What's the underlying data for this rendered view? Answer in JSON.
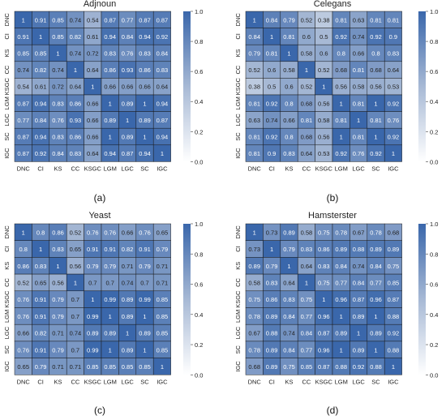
{
  "figure": {
    "colorbar_ticks": [
      "0.0",
      "0.2",
      "0.4",
      "0.6",
      "0.8",
      "1.0"
    ]
  },
  "chart_data": [
    {
      "type": "heatmap",
      "title": "Adjnoun",
      "caption": "(a)",
      "row_labels": [
        "DNC",
        "CI",
        "KS",
        "CC",
        "KSGC",
        "LGM",
        "LGC",
        "SC",
        "IGC"
      ],
      "col_labels": [
        "DNC",
        "CI",
        "KS",
        "CC",
        "KSGC",
        "LGM",
        "LGC",
        "SC",
        "IGC"
      ],
      "values": [
        [
          1,
          0.91,
          0.85,
          0.74,
          0.54,
          0.87,
          0.77,
          0.87,
          0.87
        ],
        [
          0.91,
          1,
          0.85,
          0.82,
          0.61,
          0.94,
          0.84,
          0.94,
          0.92
        ],
        [
          0.85,
          0.85,
          1,
          0.74,
          0.72,
          0.83,
          0.76,
          0.83,
          0.84
        ],
        [
          0.74,
          0.82,
          0.74,
          1,
          0.64,
          0.86,
          0.93,
          0.86,
          0.83
        ],
        [
          0.54,
          0.61,
          0.72,
          0.64,
          1,
          0.66,
          0.66,
          0.66,
          0.64
        ],
        [
          0.87,
          0.94,
          0.83,
          0.86,
          0.66,
          1,
          0.89,
          1,
          0.94
        ],
        [
          0.77,
          0.84,
          0.76,
          0.93,
          0.66,
          0.89,
          1,
          0.89,
          0.87
        ],
        [
          0.87,
          0.94,
          0.83,
          0.86,
          0.66,
          1,
          0.89,
          1,
          0.94
        ],
        [
          0.87,
          0.92,
          0.84,
          0.83,
          0.64,
          0.94,
          0.87,
          0.94,
          1
        ]
      ],
      "vmin": 0,
      "vmax": 1,
      "colorbar_ticks": [
        0,
        0.2,
        0.4,
        0.6,
        0.8,
        1.0
      ]
    },
    {
      "type": "heatmap",
      "title": "Celegans",
      "caption": "(b)",
      "row_labels": [
        "DNC",
        "CI",
        "KS",
        "CC",
        "KSGC",
        "LGM",
        "LGC",
        "SC",
        "IGC"
      ],
      "col_labels": [
        "DNC",
        "CI",
        "KS",
        "CC",
        "KSGC",
        "LGM",
        "LGC",
        "SC",
        "IGC"
      ],
      "values": [
        [
          1,
          0.84,
          0.79,
          0.52,
          0.38,
          0.81,
          0.63,
          0.81,
          0.81
        ],
        [
          0.84,
          1,
          0.81,
          0.6,
          0.5,
          0.92,
          0.74,
          0.92,
          0.9
        ],
        [
          0.79,
          0.81,
          1,
          0.58,
          0.6,
          0.8,
          0.66,
          0.8,
          0.83
        ],
        [
          0.52,
          0.6,
          0.58,
          1,
          0.52,
          0.68,
          0.81,
          0.68,
          0.64
        ],
        [
          0.38,
          0.5,
          0.6,
          0.52,
          1,
          0.56,
          0.58,
          0.56,
          0.53
        ],
        [
          0.81,
          0.92,
          0.8,
          0.68,
          0.56,
          1,
          0.81,
          1,
          0.92
        ],
        [
          0.63,
          0.74,
          0.66,
          0.81,
          0.58,
          0.81,
          1,
          0.81,
          0.76
        ],
        [
          0.81,
          0.92,
          0.8,
          0.68,
          0.56,
          1,
          0.81,
          1,
          0.92
        ],
        [
          0.81,
          0.9,
          0.83,
          0.64,
          0.53,
          0.92,
          0.76,
          0.92,
          1
        ]
      ],
      "vmin": 0,
      "vmax": 1,
      "colorbar_ticks": [
        0,
        0.2,
        0.4,
        0.6,
        0.8,
        1.0
      ]
    },
    {
      "type": "heatmap",
      "title": "Yeast",
      "caption": "(c)",
      "row_labels": [
        "DNC",
        "CI",
        "KS",
        "CC",
        "KSGC",
        "LGM",
        "LGC",
        "SC",
        "IGC"
      ],
      "col_labels": [
        "DNC",
        "CI",
        "KS",
        "CC",
        "KSGC",
        "LGM",
        "LGC",
        "SC",
        "IGC"
      ],
      "values": [
        [
          1,
          0.8,
          0.86,
          0.52,
          0.76,
          0.76,
          0.66,
          0.76,
          0.65
        ],
        [
          0.8,
          1,
          0.83,
          0.65,
          0.91,
          0.91,
          0.82,
          0.91,
          0.79
        ],
        [
          0.86,
          0.83,
          1,
          0.56,
          0.79,
          0.79,
          0.71,
          0.79,
          0.71
        ],
        [
          0.52,
          0.65,
          0.56,
          1,
          0.7,
          0.7,
          0.74,
          0.7,
          0.71
        ],
        [
          0.76,
          0.91,
          0.79,
          0.7,
          1,
          0.99,
          0.89,
          0.99,
          0.85
        ],
        [
          0.76,
          0.91,
          0.79,
          0.7,
          0.99,
          1,
          0.89,
          1,
          0.85
        ],
        [
          0.66,
          0.82,
          0.71,
          0.74,
          0.89,
          0.89,
          1,
          0.89,
          0.85
        ],
        [
          0.76,
          0.91,
          0.79,
          0.7,
          0.99,
          1,
          0.89,
          1,
          0.85
        ],
        [
          0.65,
          0.79,
          0.71,
          0.71,
          0.85,
          0.85,
          0.85,
          0.85,
          1
        ]
      ],
      "vmin": 0,
      "vmax": 1,
      "colorbar_ticks": [
        0,
        0.2,
        0.4,
        0.6,
        0.8,
        1.0
      ]
    },
    {
      "type": "heatmap",
      "title": "Hamsterster",
      "caption": "(d)",
      "row_labels": [
        "DNC",
        "CI",
        "KS",
        "CC",
        "KSGC",
        "LGM",
        "LGC",
        "SC",
        "IGC"
      ],
      "col_labels": [
        "DNC",
        "CI",
        "KS",
        "CC",
        "KSGC",
        "LGM",
        "LGC",
        "SC",
        "IGC"
      ],
      "values": [
        [
          1,
          0.73,
          0.89,
          0.58,
          0.75,
          0.78,
          0.67,
          0.78,
          0.68
        ],
        [
          0.73,
          1,
          0.79,
          0.83,
          0.86,
          0.89,
          0.88,
          0.89,
          0.89
        ],
        [
          0.89,
          0.79,
          1,
          0.64,
          0.83,
          0.84,
          0.74,
          0.84,
          0.75
        ],
        [
          0.58,
          0.83,
          0.64,
          1,
          0.75,
          0.77,
          0.84,
          0.77,
          0.85
        ],
        [
          0.75,
          0.86,
          0.83,
          0.75,
          1,
          0.96,
          0.87,
          0.96,
          0.87
        ],
        [
          0.78,
          0.89,
          0.84,
          0.77,
          0.96,
          1,
          0.89,
          1,
          0.88
        ],
        [
          0.67,
          0.88,
          0.74,
          0.84,
          0.87,
          0.89,
          1,
          0.89,
          0.92
        ],
        [
          0.78,
          0.89,
          0.84,
          0.77,
          0.96,
          1,
          0.89,
          1,
          0.88
        ],
        [
          0.68,
          0.89,
          0.75,
          0.85,
          0.87,
          0.88,
          0.92,
          0.88,
          1
        ]
      ],
      "vmin": 0,
      "vmax": 1,
      "colorbar_ticks": [
        0,
        0.2,
        0.4,
        0.6,
        0.8,
        1.0
      ]
    }
  ]
}
